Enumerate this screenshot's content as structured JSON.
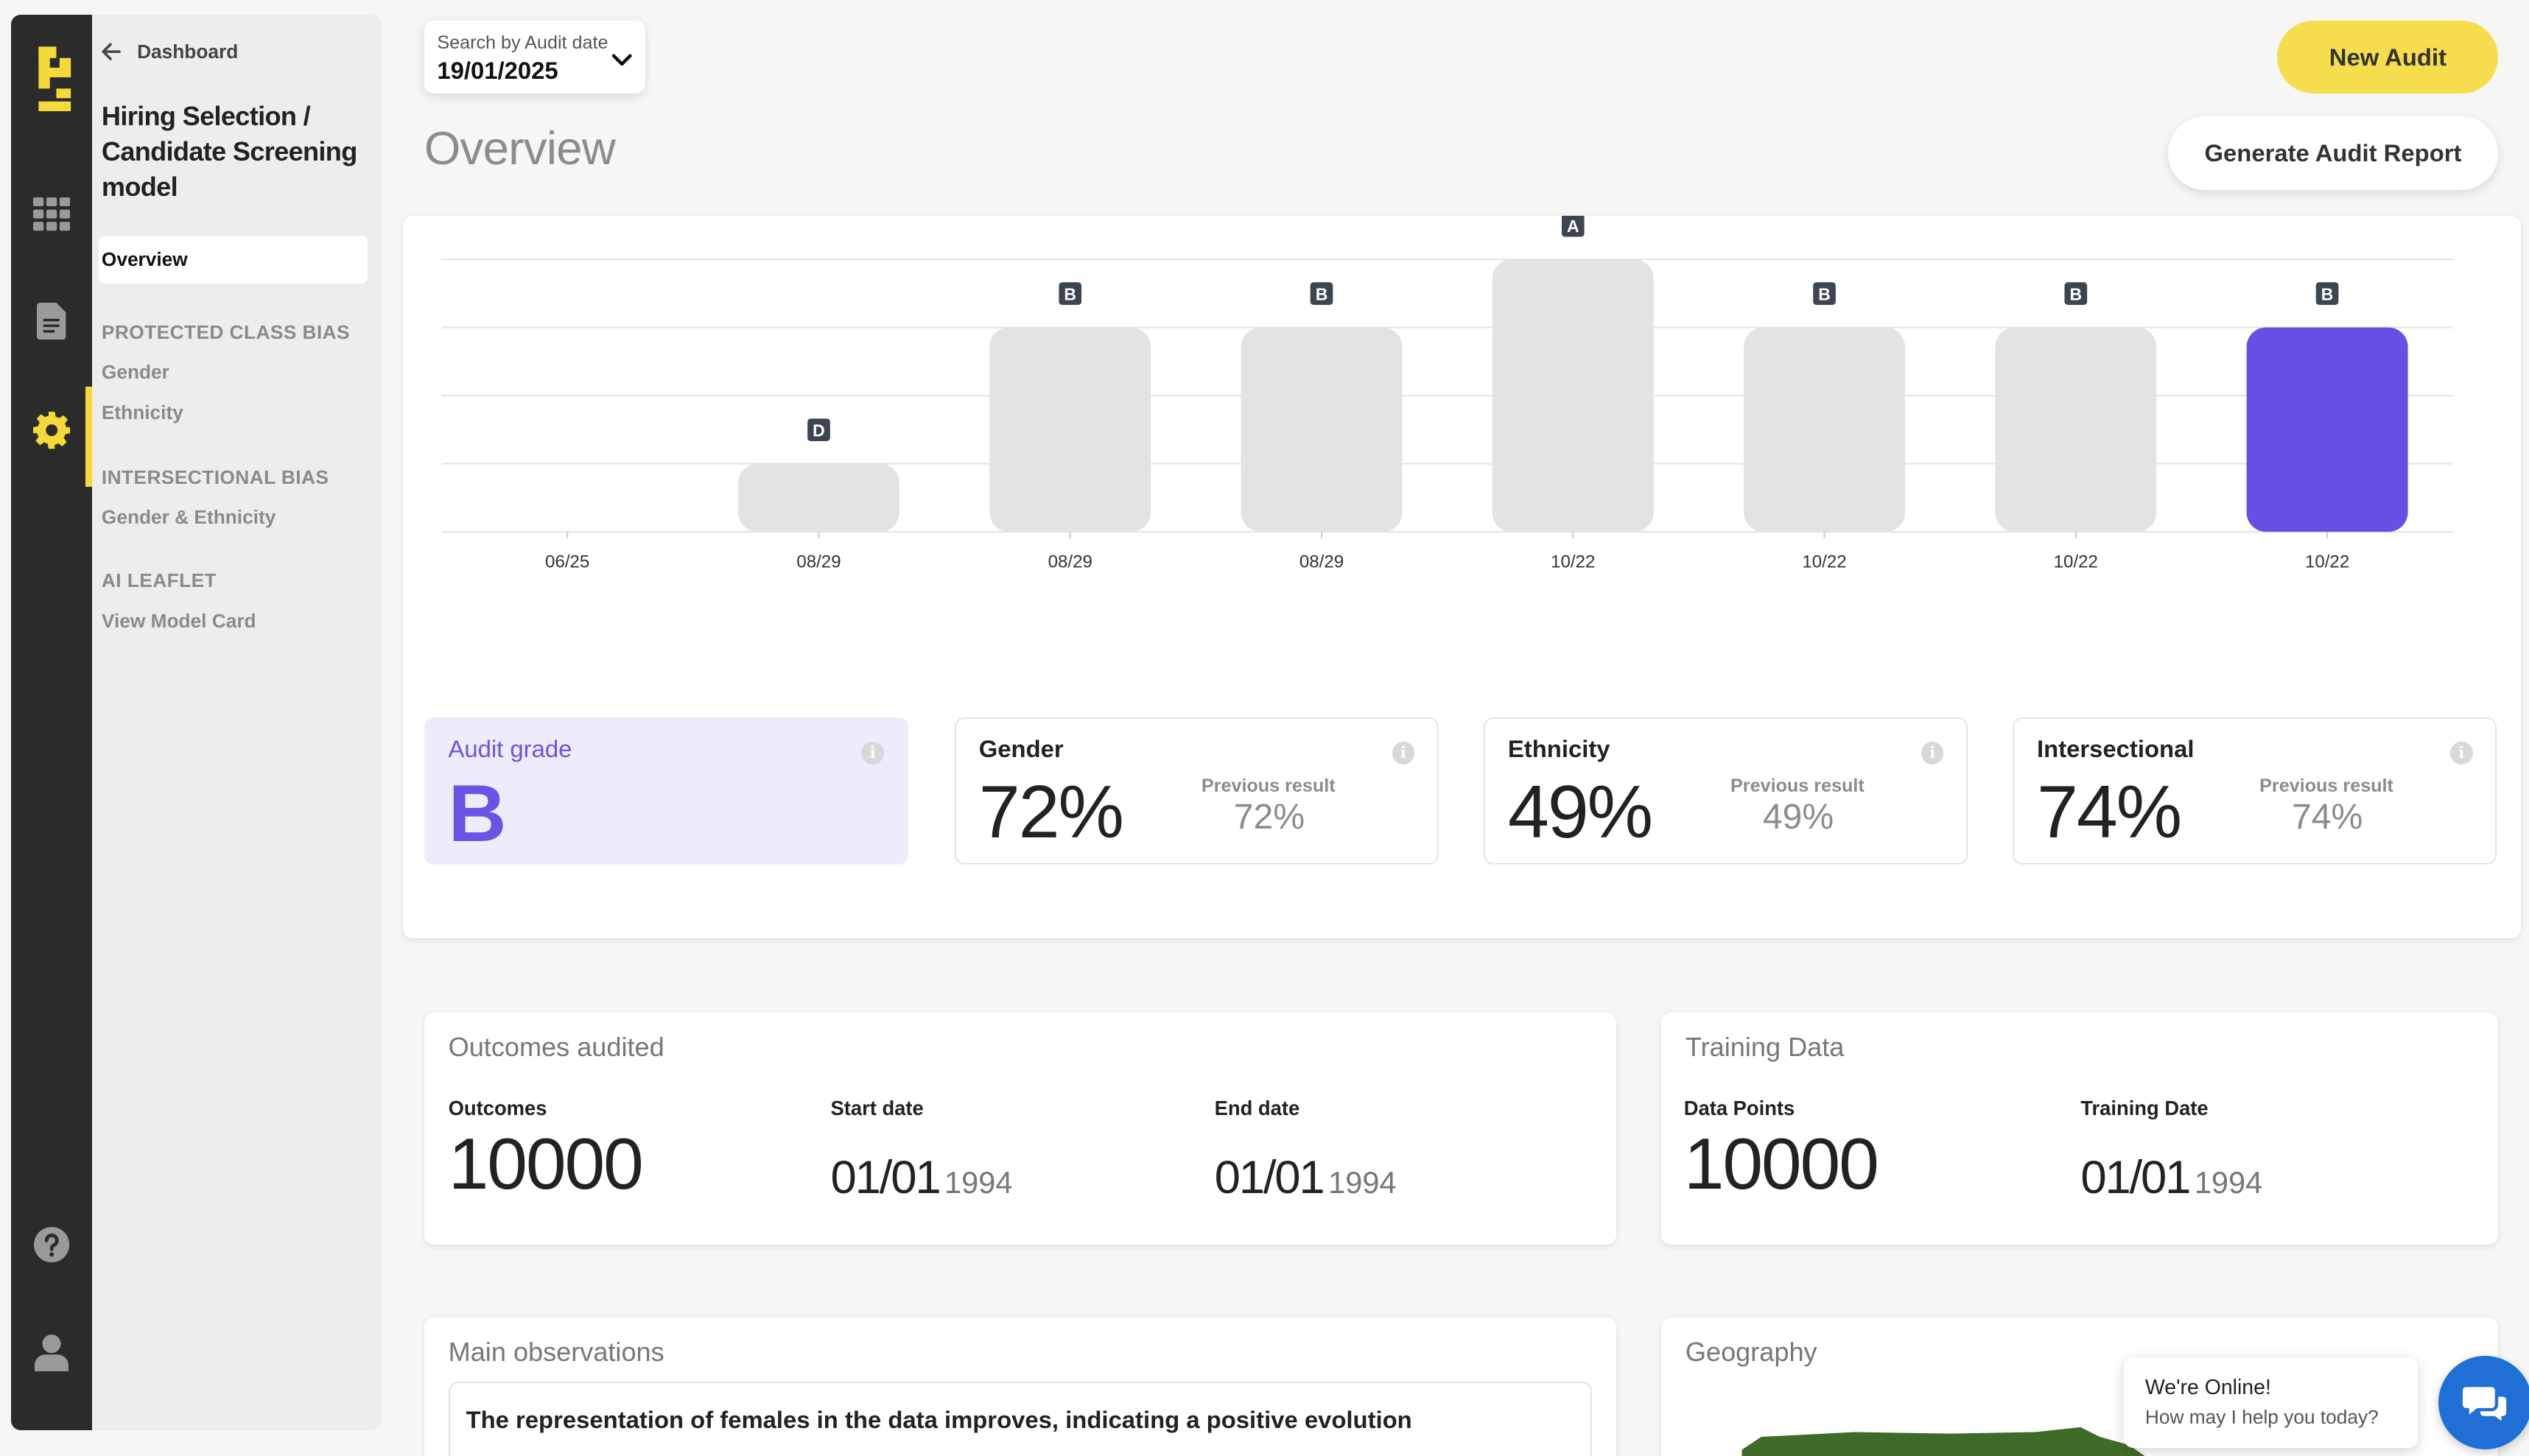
{
  "nav": {
    "back_label": "Dashboard",
    "model_title": "Hiring Selection / Candidate Screening model",
    "overview": "Overview",
    "sections": [
      {
        "title": "PROTECTED CLASS BIAS",
        "items": [
          "Gender",
          "Ethnicity"
        ]
      },
      {
        "title": "INTERSECTIONAL BIAS",
        "items": [
          "Gender & Ethnicity"
        ]
      },
      {
        "title": "AI LEAFLET",
        "items": [
          "View Model Card"
        ]
      }
    ]
  },
  "search": {
    "label": "Search by Audit date",
    "value": "19/01/2025"
  },
  "page_title": "Overview",
  "actions": {
    "new_audit": "New Audit",
    "generate_report": "Generate Audit Report"
  },
  "chart_data": {
    "type": "bar",
    "categories": [
      "06/25",
      "08/29",
      "08/29",
      "08/29",
      "10/22",
      "10/22",
      "10/22",
      "10/22"
    ],
    "values": [
      0,
      1,
      3,
      3,
      4,
      3,
      3,
      3
    ],
    "grades": [
      "",
      "D",
      "B",
      "B",
      "A",
      "B",
      "B",
      "B"
    ],
    "ylim": [
      0,
      4
    ],
    "grid": true,
    "highlight_index": 7,
    "colors": {
      "bar": "#e3e3e3",
      "highlight": "#6650e3",
      "badge": "#3c4650"
    }
  },
  "metrics": {
    "grade": {
      "title": "Audit grade",
      "value": "B"
    },
    "cards": [
      {
        "title": "Gender",
        "value": "72%",
        "prev_label": "Previous result",
        "prev_value": "72%"
      },
      {
        "title": "Ethnicity",
        "value": "49%",
        "prev_label": "Previous result",
        "prev_value": "49%"
      },
      {
        "title": "Intersectional",
        "value": "74%",
        "prev_label": "Previous result",
        "prev_value": "74%"
      }
    ]
  },
  "outcomes": {
    "title": "Outcomes audited",
    "outcomes_label": "Outcomes",
    "outcomes_value": "10000",
    "start_label": "Start date",
    "start_day": "01/01",
    "start_year": "1994",
    "end_label": "End date",
    "end_day": "01/01",
    "end_year": "1994"
  },
  "training": {
    "title": "Training Data",
    "points_label": "Data Points",
    "points_value": "10000",
    "date_label": "Training Date",
    "date_day": "01/01",
    "date_year": "1994"
  },
  "observations": {
    "title": "Main observations",
    "items": [
      "The representation of females in the data improves, indicating a positive evolution"
    ]
  },
  "geography": {
    "title": "Geography"
  },
  "chat": {
    "line1": "We're Online!",
    "line2": "How may I help you today?"
  },
  "colors": {
    "accent": "#f6dd4e",
    "purple": "#6b53e6",
    "rail": "#2b2b2b",
    "chat": "#1f6fd6",
    "map": "#3f6b28"
  }
}
